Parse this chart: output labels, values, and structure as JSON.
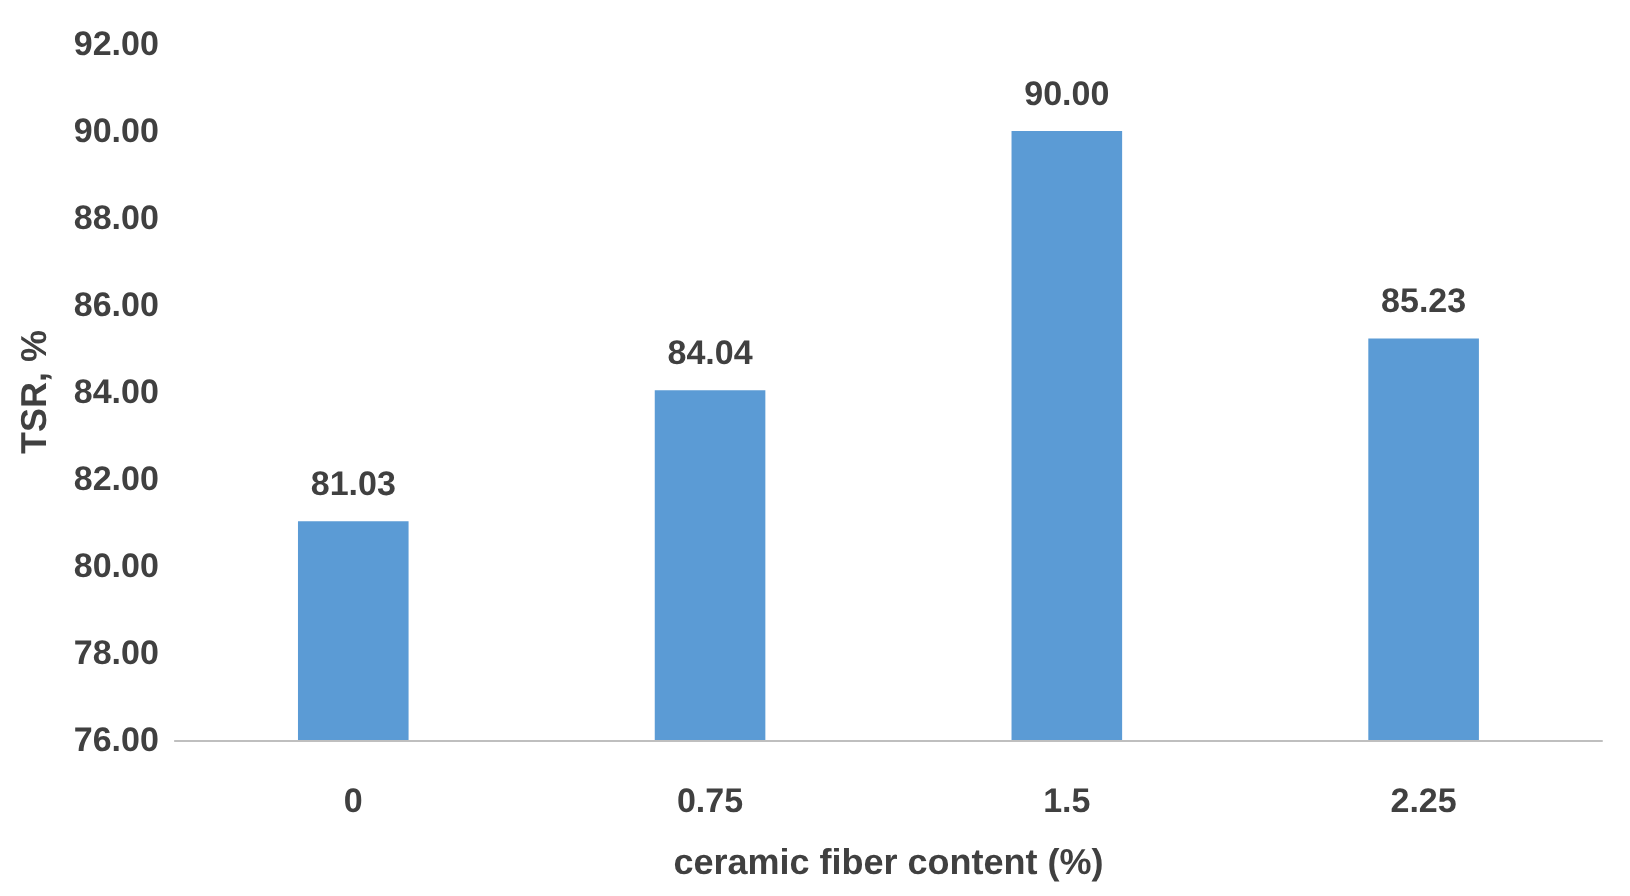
{
  "chart_data": {
    "type": "bar",
    "xlabel": "ceramic fiber content (%)",
    "ylabel": "TSR, %",
    "categories": [
      "0",
      "0.75",
      "1.5",
      "2.25"
    ],
    "values": [
      81.03,
      84.04,
      90,
      85.23
    ],
    "value_labels": [
      "81.03",
      "84.04",
      "90.00",
      "85.23"
    ],
    "color": "#5b9bd5",
    "ylim": [
      76,
      92
    ],
    "yticks": [
      {
        "value": 76,
        "label": "76.00"
      },
      {
        "value": 78,
        "label": "78.00"
      },
      {
        "value": 80,
        "label": "80.00"
      },
      {
        "value": 82,
        "label": "82.00"
      },
      {
        "value": 84,
        "label": "84.00"
      },
      {
        "value": 86,
        "label": "86.00"
      },
      {
        "value": 88,
        "label": "88.00"
      },
      {
        "value": 90,
        "label": "90.00"
      },
      {
        "value": 92,
        "label": "92.00"
      }
    ],
    "grid": false
  }
}
